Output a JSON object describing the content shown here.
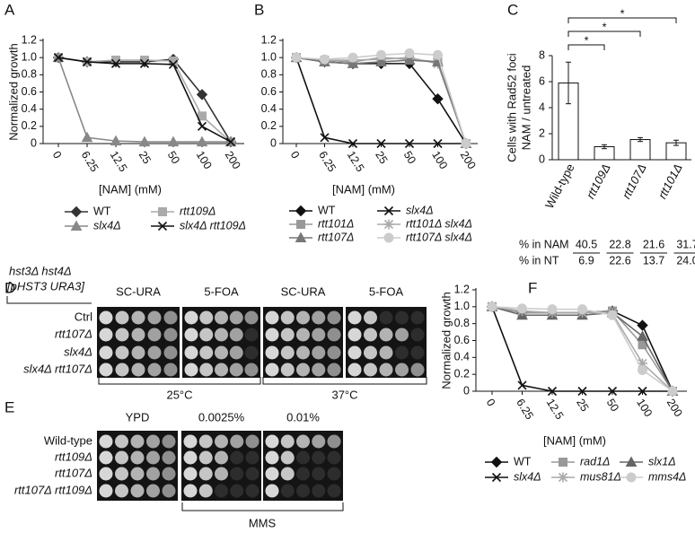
{
  "chart_data": [
    {
      "type": "line",
      "panel": "A",
      "ylabel": "Normalized growth",
      "xlabel": "[NAM] (mM)",
      "categories": [
        "0",
        "6.25",
        "12.5",
        "25",
        "50",
        "100",
        "200"
      ],
      "ylim": [
        0,
        1.2
      ],
      "yticks": [
        0,
        0.2,
        0.4,
        0.6,
        0.8,
        {
          "value": 1,
          "label": "1.0"
        },
        1.2
      ],
      "grid": false,
      "series": [
        {
          "name": "WT",
          "color": "#333333",
          "marker": "diamond",
          "values": [
            1.0,
            0.95,
            0.95,
            0.95,
            0.98,
            0.57,
            0.02
          ]
        },
        {
          "name": "rtt109Δ",
          "color": "#aaaaaa",
          "marker": "square",
          "values": [
            1.0,
            0.95,
            0.97,
            0.97,
            0.96,
            0.32,
            0.02
          ]
        },
        {
          "name": "slx4Δ",
          "color": "#888888",
          "marker": "triangle",
          "values": [
            1.0,
            0.07,
            0.03,
            0.02,
            0.02,
            0.02,
            0.02
          ]
        },
        {
          "name": "slx4Δ rtt109Δ",
          "color": "#111111",
          "marker": "x",
          "values": [
            1.0,
            0.95,
            0.93,
            0.93,
            0.92,
            0.2,
            0.02
          ]
        }
      ]
    },
    {
      "type": "line",
      "panel": "B",
      "xlabel": "[NAM] (mM)",
      "categories": [
        "0",
        "6.25",
        "12.5",
        "25",
        "50",
        "100",
        "200"
      ],
      "ylim": [
        0,
        1.2
      ],
      "yticks": [
        0,
        0.2,
        0.4,
        0.6,
        0.8,
        {
          "value": 1,
          "label": "1.0"
        },
        1.2
      ],
      "grid": false,
      "series": [
        {
          "name": "WT",
          "color": "#111111",
          "marker": "diamond",
          "values": [
            1.0,
            0.95,
            0.93,
            0.93,
            0.93,
            0.52,
            0.0
          ]
        },
        {
          "name": "slx4Δ",
          "color": "#111111",
          "marker": "x",
          "values": [
            1.0,
            0.07,
            0.0,
            0.0,
            0.0,
            0.0,
            0.0
          ]
        },
        {
          "name": "rtt101Δ",
          "color": "#999999",
          "marker": "square",
          "values": [
            1.0,
            0.97,
            0.95,
            1.0,
            0.98,
            0.95,
            0.0
          ]
        },
        {
          "name": "rtt101Δ slx4Δ",
          "color": "#aaaaaa",
          "marker": "asterisk",
          "values": [
            1.0,
            0.97,
            0.97,
            0.98,
            1.0,
            0.93,
            0.0
          ]
        },
        {
          "name": "rtt107Δ",
          "color": "#777777",
          "marker": "triangle",
          "values": [
            1.0,
            0.95,
            0.93,
            0.95,
            0.97,
            0.95,
            0.0
          ]
        },
        {
          "name": "rtt107Δ slx4Δ",
          "color": "#cccccc",
          "marker": "circle",
          "values": [
            1.0,
            0.98,
            1.0,
            1.03,
            1.05,
            1.03,
            0.0
          ]
        }
      ]
    },
    {
      "type": "bar",
      "panel": "C",
      "ylabel": [
        "Cells with Rad52 foci",
        "NAM / untreated"
      ],
      "categories": [
        "Wild-type",
        "rtt109Δ",
        "rtt107Δ",
        "rtt101Δ"
      ],
      "values": [
        5.9,
        1.0,
        1.55,
        1.3
      ],
      "errors": [
        1.6,
        0.15,
        0.15,
        0.2
      ],
      "color": "#ffffff",
      "ylim": [
        0,
        8
      ],
      "yticks": [
        0,
        2,
        4,
        6,
        8
      ],
      "grid": false,
      "significance": [
        "*",
        "*",
        "*"
      ],
      "table": {
        "row_labels": [
          "% in NAM",
          "% in NT"
        ],
        "nam": [
          "40.5",
          "22.8",
          "21.6",
          "31.7"
        ],
        "nt": [
          "6.9",
          "22.6",
          "13.7",
          "24.0"
        ]
      }
    },
    {
      "type": "line",
      "panel": "F",
      "ylabel": "Normalized growth",
      "xlabel": "[NAM] (mM)",
      "categories": [
        "0",
        "6.25",
        "12.5",
        "25",
        "50",
        "100",
        "200"
      ],
      "ylim": [
        0,
        1.2
      ],
      "yticks": [
        0,
        0.2,
        0.4,
        0.6,
        0.8,
        {
          "value": 1,
          "label": "1.0"
        },
        1.2
      ],
      "grid": false,
      "series": [
        {
          "name": "WT",
          "color": "#111111",
          "marker": "diamond",
          "values": [
            1.0,
            0.93,
            0.93,
            0.93,
            0.95,
            0.78,
            0.0
          ]
        },
        {
          "name": "rad1Δ",
          "color": "#999999",
          "marker": "square",
          "values": [
            1.0,
            0.93,
            0.93,
            0.93,
            0.95,
            0.55,
            0.0
          ]
        },
        {
          "name": "slx1Δ",
          "color": "#666666",
          "marker": "triangle",
          "values": [
            1.0,
            0.9,
            0.9,
            0.9,
            0.93,
            0.65,
            0.0
          ]
        },
        {
          "name": "slx4Δ",
          "color": "#111111",
          "marker": "x",
          "values": [
            1.0,
            0.07,
            0.0,
            0.0,
            0.0,
            0.0,
            0.0
          ]
        },
        {
          "name": "mus81Δ",
          "color": "#aaaaaa",
          "marker": "asterisk",
          "values": [
            1.0,
            0.95,
            0.93,
            0.93,
            0.92,
            0.33,
            0.0
          ]
        },
        {
          "name": "mms4Δ",
          "color": "#cccccc",
          "marker": "circle",
          "values": [
            1.0,
            0.98,
            0.97,
            0.97,
            0.9,
            0.25,
            0.0
          ]
        }
      ]
    }
  ],
  "spot_assays": [
    {
      "panel": "D",
      "header": [
        "hst3Δ hst4Δ",
        "[pHST3 URA3]"
      ],
      "columns": [
        "SC-URA",
        "5-FOA",
        "SC-URA",
        "5-FOA"
      ],
      "rows": [
        "Ctrl",
        "rtt107Δ",
        "slx4Δ",
        "slx4Δ rtt107Δ"
      ],
      "groups": [
        "25°C",
        "37°C"
      ]
    },
    {
      "panel": "E",
      "columns": [
        "YPD",
        "0.0025%",
        "0.01%"
      ],
      "rows": [
        "Wild-type",
        "rtt109Δ",
        "rtt107Δ",
        "rtt107Δ rtt109Δ"
      ],
      "group": "MMS"
    }
  ]
}
